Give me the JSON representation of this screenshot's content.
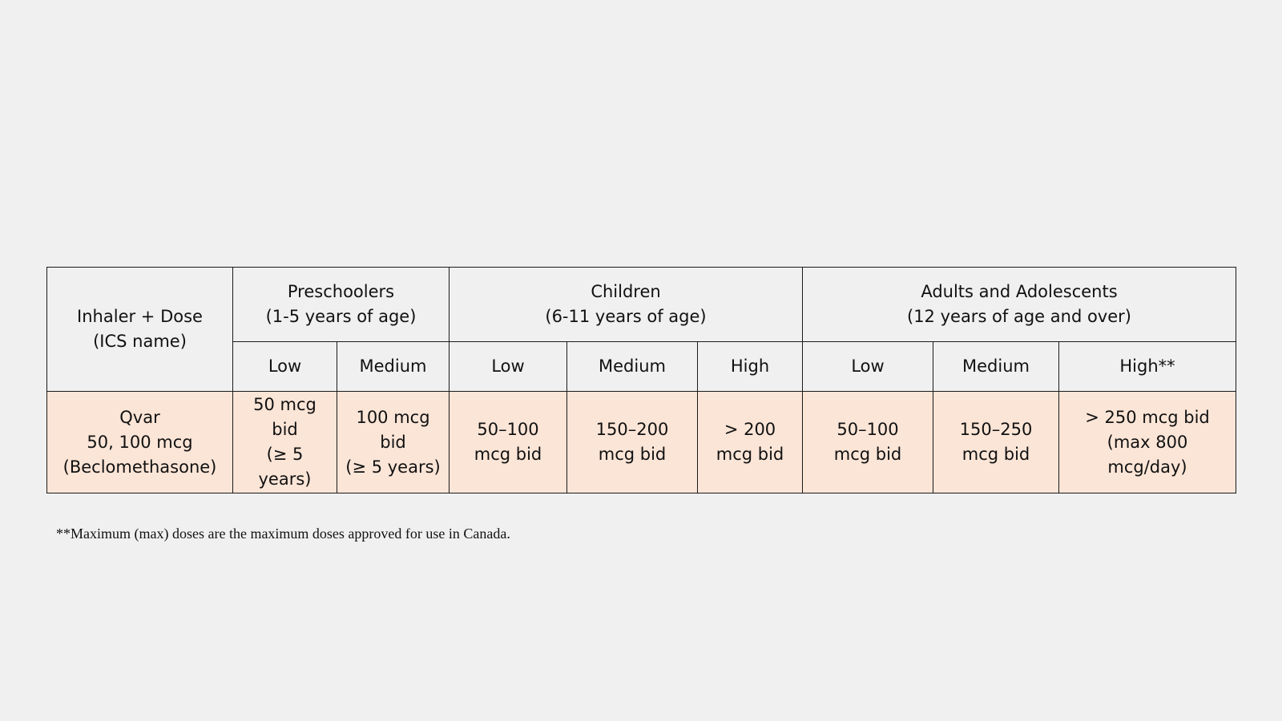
{
  "table": {
    "corner": [
      "Inhaler + Dose",
      "(ICS name)"
    ],
    "groups": [
      {
        "label": [
          "Preschoolers",
          "(1-5 years of age)"
        ]
      },
      {
        "label": [
          "Children",
          "(6-11 years of age)"
        ]
      },
      {
        "label": [
          "Adults and Adolescents",
          "(12 years of age and over)"
        ]
      }
    ],
    "levels": [
      "Low",
      "Medium",
      "Low",
      "Medium",
      "High",
      "Low",
      "Medium",
      "High**"
    ],
    "row": {
      "inhaler": [
        "Qvar",
        "50, 100 mcg",
        "(Beclomethasone)"
      ],
      "cells": [
        [
          "50 mcg",
          "bid",
          "(≥ 5",
          "years)"
        ],
        [
          "100 mcg",
          "bid",
          "(≥ 5 years)"
        ],
        [
          "50–100",
          "mcg bid"
        ],
        [
          "150–200",
          "mcg bid"
        ],
        [
          "> 200",
          "mcg bid"
        ],
        [
          "50–100",
          "mcg bid"
        ],
        [
          "150–250",
          "mcg bid"
        ],
        [
          "> 250 mcg bid",
          "(max 800",
          "mcg/day)"
        ]
      ]
    }
  },
  "footnote": "**Maximum (max) doses are the maximum doses approved for use in Canada.",
  "colors": {
    "page_background": "#f0f0f0",
    "data_row_fill": "#fbe5d7",
    "border": "#1a1a1a"
  }
}
